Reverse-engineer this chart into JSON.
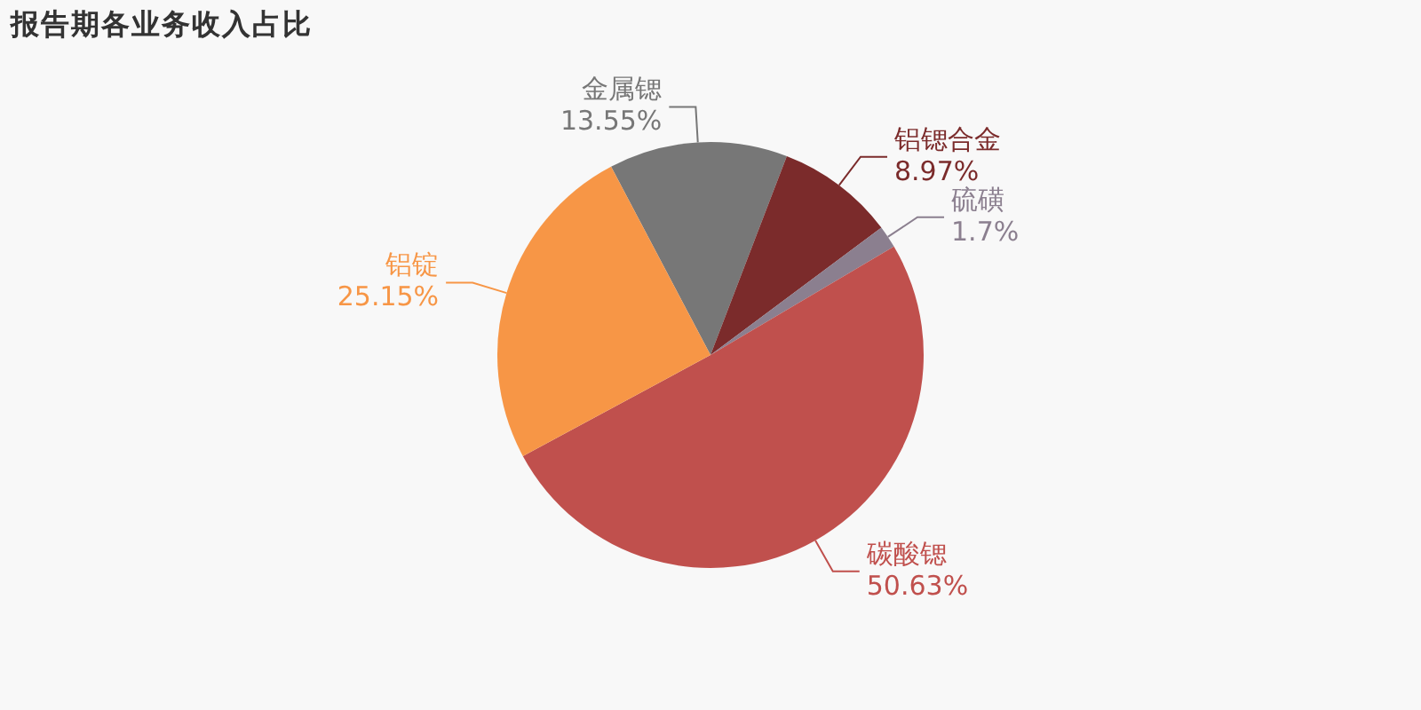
{
  "chart_data": {
    "type": "pie",
    "title": "报告期各业务收入占比",
    "categories": [
      "金属锶",
      "铝锶合金",
      "硫磺",
      "碳酸锶",
      "铝锭"
    ],
    "values": [
      13.55,
      8.97,
      1.7,
      50.63,
      25.15
    ],
    "value_labels": [
      "13.55%",
      "8.97%",
      "1.7%",
      "50.63%",
      "25.15%"
    ],
    "colors": [
      "#777777",
      "#7b2b2b",
      "#8b7f8f",
      "#c0504d",
      "#f79646"
    ],
    "legend": false
  }
}
